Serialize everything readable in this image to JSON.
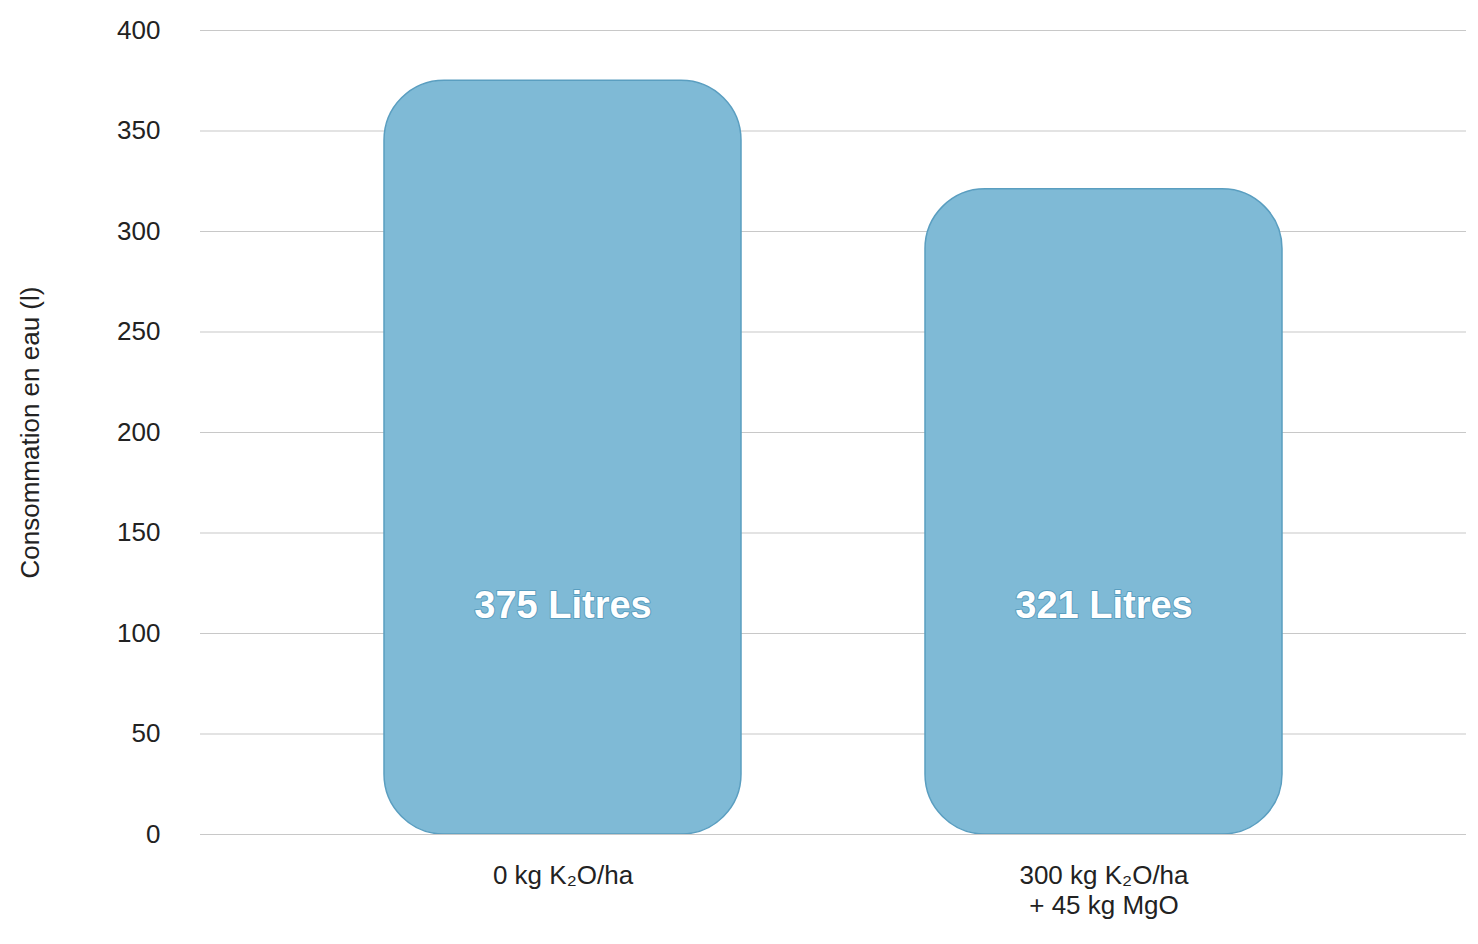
{
  "chart_data": {
    "type": "bar",
    "ylabel": "Consommation en eau (l)",
    "categories": [
      "0 kg K₂O/ha",
      "300 kg K₂O/ha\n+ 45 kg MgO"
    ],
    "values": [
      375,
      321
    ],
    "value_labels": [
      "375 Litres",
      "321 Litres"
    ],
    "data_labels": true,
    "color": "#7fbad6",
    "ylim": [
      0,
      400
    ],
    "yticks": [
      0,
      50,
      100,
      150,
      200,
      250,
      300,
      350,
      400
    ],
    "grid": true
  }
}
